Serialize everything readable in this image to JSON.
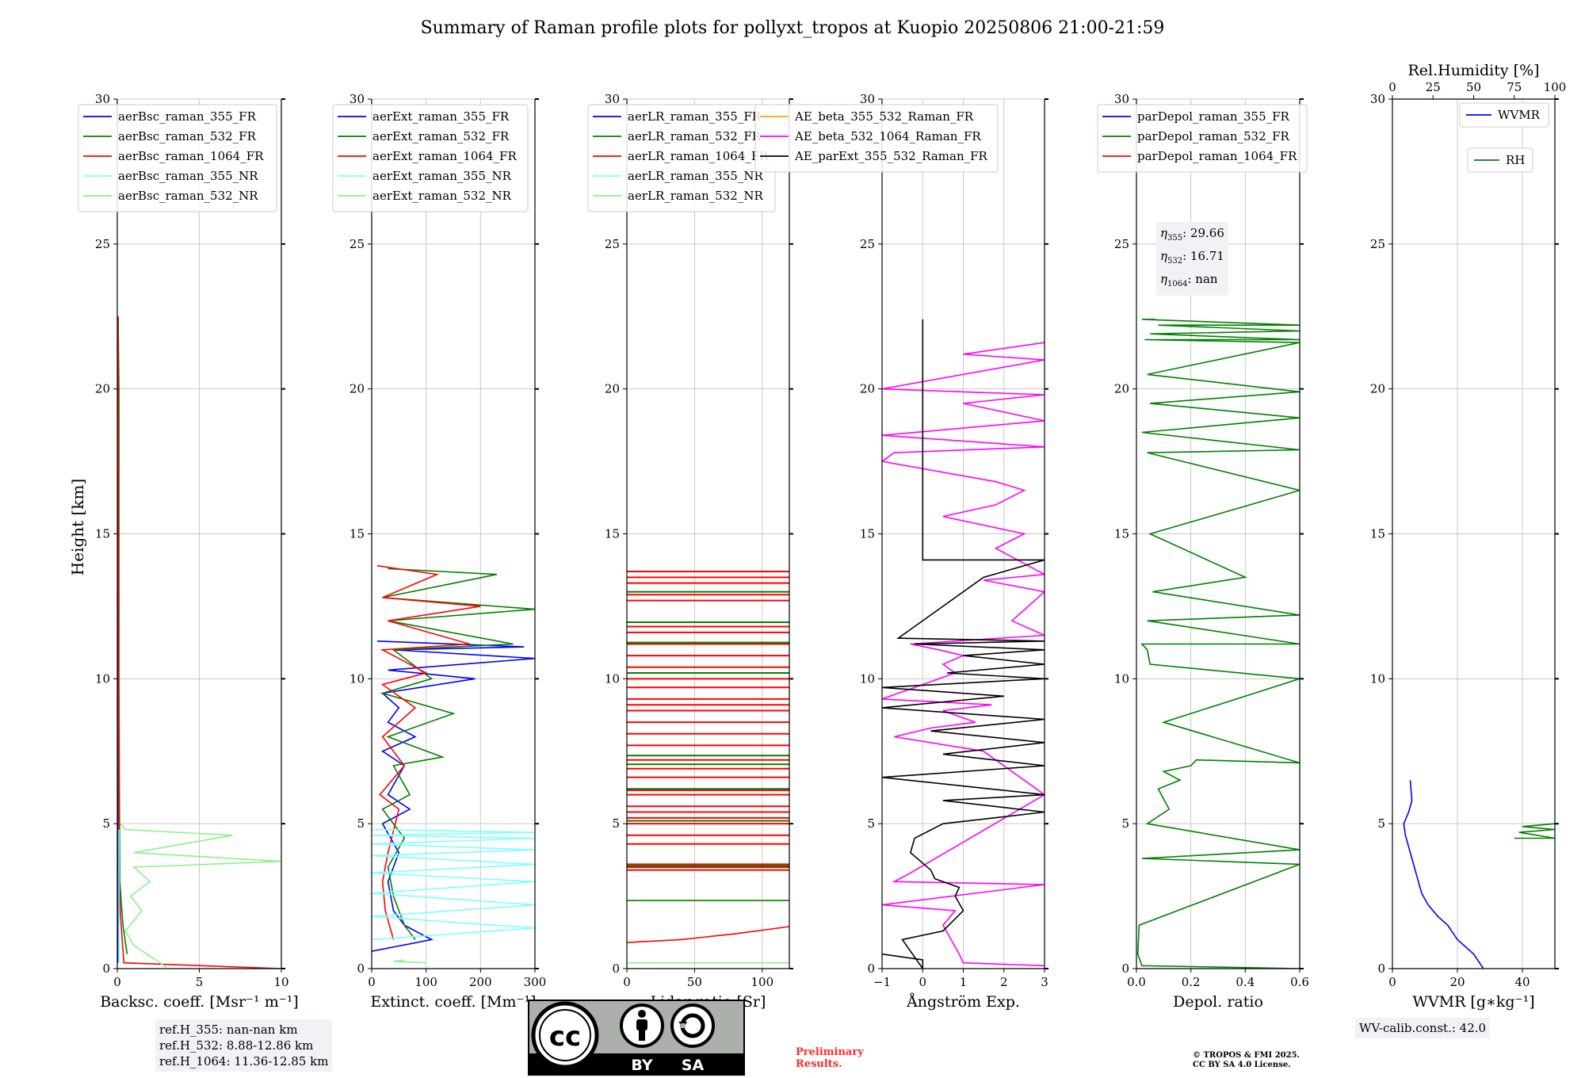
{
  "title": "Summary of Raman profile plots for pollyxt_tropos at Kuopio 20250806 21:00-21:59",
  "colors": {
    "blue": "#0000ff",
    "green": "#008000",
    "red": "#ff0000",
    "cyan": "#7fffff",
    "lightgreen": "#90ee90",
    "orange": "#ffa500",
    "magenta": "#ff00ff",
    "black": "#000000",
    "grid": "#c8c8c8",
    "infobox_bg": "#f0f2f6",
    "preliminary": "#ff2b2b"
  },
  "ylabel": "Height [km]",
  "ref_heights": [
    "ref.H_355: nan-nan km",
    "ref.H_532: 8.88-12.86 km",
    "ref.H_1064: 11.36-12.85 km"
  ],
  "eta": {
    "e355": "29.66",
    "e532": "16.71",
    "e1064": "nan"
  },
  "wv_calib": "WV-calib.const.: 42.0",
  "preliminary": [
    "Preliminary",
    "Results."
  ],
  "copyright": [
    "© TROPOS & FMI 2025.",
    "CC BY SA 4.0 License."
  ],
  "license_badge": {
    "icon_names": [
      "cc-icon",
      "by-person-icon",
      "sa-icon"
    ],
    "labels": [
      "BY",
      "SA"
    ]
  },
  "chart_data": [
    {
      "type": "line",
      "xlabel": "Backsc. coeff. [Msr⁻¹ m⁻¹]",
      "xlim": [
        0,
        10
      ],
      "ylim": [
        0,
        30
      ],
      "xticks": [
        "0",
        "5",
        "10"
      ],
      "yticks": [
        "0",
        "5",
        "10",
        "15",
        "20",
        "25",
        "30"
      ],
      "grid": true,
      "legend": "top",
      "series": [
        {
          "name": "aerBsc_raman_355_FR",
          "color": "blue",
          "x": [
            0.05,
            0.05,
            0.05
          ],
          "y": [
            0.2,
            10,
            22.5
          ]
        },
        {
          "name": "aerBsc_raman_532_FR",
          "color": "green",
          "x": [
            0.6,
            0.35,
            0.15,
            0.1,
            0.1,
            0.05
          ],
          "y": [
            0.5,
            1.5,
            3,
            10,
            20,
            22.5
          ]
        },
        {
          "name": "aerBsc_raman_1064_FR",
          "color": "red",
          "x": [
            10,
            0.4,
            0.3,
            0.2,
            0.1,
            0.08,
            0.05
          ],
          "y": [
            0,
            0.2,
            1.0,
            1.8,
            3,
            10,
            22.5
          ]
        },
        {
          "name": "aerBsc_raman_355_NR",
          "color": "cyan",
          "x": [
            0.1,
            0.1
          ],
          "y": [
            0.2,
            4.8
          ]
        },
        {
          "name": "aerBsc_raman_532_NR",
          "color": "lightgreen",
          "x": [
            3,
            1,
            0.5,
            1.5,
            0.8,
            2,
            1,
            10,
            1,
            7,
            0.5,
            0.2
          ],
          "y": [
            0.05,
            0.8,
            1.3,
            2.0,
            2.5,
            3.0,
            3.5,
            3.7,
            4.0,
            4.6,
            4.8,
            5.0
          ]
        }
      ]
    },
    {
      "type": "line",
      "xlabel": "Extinct. coeff. [Mm⁻¹]",
      "xlim": [
        0,
        300
      ],
      "ylim": [
        0,
        30
      ],
      "xticks": [
        "0",
        "100",
        "200",
        "300"
      ],
      "yticks": [
        "0",
        "5",
        "10",
        "15",
        "20",
        "25",
        "30"
      ],
      "grid": true,
      "legend": "top",
      "series": [
        {
          "name": "aerExt_raman_355_FR",
          "color": "blue",
          "x": [
            0,
            110,
            60,
            40,
            30,
            50,
            20,
            70,
            30,
            60,
            20,
            80,
            30,
            50,
            20,
            190,
            30,
            300,
            40,
            280,
            10
          ],
          "y": [
            0.6,
            1.0,
            1.5,
            2.0,
            3.0,
            4.0,
            5.0,
            5.5,
            6.0,
            7.0,
            7.5,
            8.0,
            8.5,
            9.0,
            9.5,
            10.0,
            10.3,
            10.7,
            11.0,
            11.1,
            11.3
          ]
        },
        {
          "name": "aerExt_raman_532_FR",
          "color": "green",
          "x": [
            80,
            60,
            40,
            30,
            60,
            20,
            70,
            40,
            130,
            30,
            150,
            20,
            110,
            40,
            260,
            30,
            300,
            20,
            230,
            30
          ],
          "y": [
            1.0,
            1.5,
            2.5,
            3.5,
            4.5,
            5.5,
            6.0,
            7.0,
            7.3,
            8.0,
            8.8,
            9.5,
            10.0,
            11.0,
            11.2,
            12.0,
            12.4,
            12.8,
            13.6,
            13.8
          ]
        },
        {
          "name": "aerExt_raman_1064_FR",
          "color": "red",
          "x": [
            40,
            25,
            20,
            30,
            50,
            15,
            60,
            20,
            80,
            20,
            100,
            20,
            180,
            30,
            200,
            20,
            120,
            10
          ],
          "y": [
            1.0,
            2.0,
            3.0,
            4.0,
            5.5,
            6.0,
            7.0,
            8.0,
            9.0,
            9.8,
            10.2,
            11.0,
            11.2,
            12.0,
            12.5,
            12.8,
            13.6,
            13.9
          ]
        },
        {
          "name": "aerExt_raman_355_NR",
          "color": "cyan",
          "x": [
            0,
            300,
            0,
            300,
            0,
            300,
            0,
            300,
            0,
            300,
            0,
            300,
            0,
            300,
            0
          ],
          "y": [
            1.0,
            1.4,
            1.8,
            2.2,
            2.6,
            3.0,
            3.3,
            3.6,
            3.9,
            4.1,
            4.3,
            4.5,
            4.6,
            4.7,
            4.8
          ]
        },
        {
          "name": "aerExt_raman_532_NR",
          "color": "lightgreen",
          "x": [
            100,
            40,
            60
          ],
          "y": [
            0.2,
            0.25,
            0.3
          ]
        }
      ]
    },
    {
      "type": "line",
      "xlabel": "Lidar ratio [Sr]",
      "xlim": [
        0,
        120
      ],
      "ylim": [
        0,
        30
      ],
      "xticks": [
        "0",
        "50",
        "100"
      ],
      "yticks": [
        "0",
        "5",
        "10",
        "15",
        "20",
        "25",
        "30"
      ],
      "grid": true,
      "legend": "top",
      "series": [
        {
          "name": "aerLR_raman_355_FR",
          "color": "blue",
          "x": [],
          "y": []
        },
        {
          "name": "aerLR_raman_532_FR",
          "color": "green",
          "x": [
            0,
            120
          ],
          "y": [
            2.35,
            2.35
          ]
        },
        {
          "name": "aerLR_raman_1064_FR",
          "color": "red",
          "x": [
            0,
            40,
            80,
            120
          ],
          "y": [
            0.9,
            1.0,
            1.2,
            1.45
          ]
        },
        {
          "name": "aerLR_raman_355_NR",
          "color": "cyan",
          "x": [],
          "y": []
        },
        {
          "name": "aerLR_raman_532_NR",
          "color": "lightgreen",
          "x": [
            0,
            120
          ],
          "y": [
            0.2,
            0.2
          ]
        }
      ],
      "horizontal_lines": {
        "red": [
          3.4,
          3.5,
          3.6,
          4.3,
          4.6,
          5.0,
          5.2,
          5.4,
          5.6,
          6.0,
          6.15,
          6.6,
          6.9,
          7.2,
          7.7,
          8.1,
          8.5,
          8.9,
          9.1,
          9.3,
          9.7,
          10.0,
          10.4,
          10.8,
          11.2,
          11.6,
          11.8,
          12.7,
          12.9,
          13.3,
          13.5,
          13.7
        ],
        "green": [
          3.55,
          5.1,
          6.2,
          7.05,
          7.35,
          10.2,
          11.25,
          11.95,
          13.0
        ]
      }
    },
    {
      "type": "line",
      "xlabel": "Ångström Exp.",
      "xlim": [
        -1,
        3
      ],
      "ylim": [
        0,
        30
      ],
      "xticks": [
        "−1",
        "0",
        "1",
        "2",
        "3"
      ],
      "yticks": [
        "0",
        "5",
        "10",
        "15",
        "20",
        "25",
        "30"
      ],
      "grid": true,
      "legend": "top",
      "series": [
        {
          "name": "AE_beta_355_532_Raman_FR",
          "color": "orange",
          "x": [],
          "y": []
        },
        {
          "name": "AE_beta_532_1064_Raman_FR",
          "color": "magenta",
          "x": [
            3,
            1,
            0.9,
            0.7,
            0.5,
            0.8,
            -1,
            3,
            -0.7,
            -0.3,
            3,
            1.5,
            -0.7,
            0.2,
            1.3,
            0.5,
            1.7,
            -1,
            0.8,
            0.5,
            1.0,
            0.4,
            -0.3,
            3,
            2.2,
            3,
            1.5,
            3,
            1.8,
            2.5,
            0.5,
            1.8,
            2.5,
            1.8,
            -1,
            -0.7,
            3,
            -1,
            3,
            1.0,
            3,
            -1,
            3,
            1.0,
            3
          ],
          "y": [
            0.1,
            0.2,
            0.5,
            1.0,
            1.5,
            2.0,
            2.2,
            2.9,
            3.0,
            3.3,
            6.0,
            7.5,
            8.0,
            8.3,
            8.5,
            8.9,
            9.1,
            9.3,
            10.2,
            10.5,
            10.8,
            11.0,
            11.2,
            11.5,
            12.0,
            13.0,
            13.4,
            13.6,
            14.5,
            15.0,
            15.6,
            16.0,
            16.5,
            16.8,
            17.5,
            17.8,
            18.0,
            18.4,
            18.9,
            19.5,
            19.8,
            20.0,
            21.0,
            21.2,
            21.6
          ]
        },
        {
          "name": "AE_parExt_355_532_Raman_FR",
          "color": "black",
          "x": [
            -1,
            0,
            0,
            -0.5,
            0.5,
            1.0,
            0.8,
            0.9,
            0.3,
            0.2,
            -0.3,
            -0.2,
            0.5,
            3,
            0.5,
            3,
            -1,
            3,
            0.5,
            3,
            0.2,
            3,
            -1,
            2,
            -1,
            3,
            0.6,
            3,
            1.0,
            3,
            -0.2,
            3,
            -0.6,
            1.5,
            3,
            0,
            0
          ],
          "y": [
            0.5,
            0.3,
            0,
            1.0,
            1.3,
            2.0,
            2.5,
            2.8,
            3.1,
            3.4,
            4.0,
            4.5,
            5.0,
            5.4,
            5.8,
            6.0,
            6.6,
            7.0,
            7.4,
            7.8,
            8.2,
            8.6,
            9.0,
            9.4,
            9.7,
            10.0,
            10.2,
            10.5,
            10.8,
            11.0,
            11.2,
            11.3,
            11.4,
            13.5,
            14.1,
            14.1,
            22.4
          ]
        }
      ]
    },
    {
      "type": "line",
      "xlabel": "Depol. ratio",
      "xlim": [
        0,
        0.6
      ],
      "ylim": [
        0,
        30
      ],
      "xticks": [
        "0.0",
        "0.2",
        "0.4",
        "0.6"
      ],
      "yticks": [
        "0",
        "5",
        "10",
        "15",
        "20",
        "25",
        "30"
      ],
      "grid": true,
      "legend": "top",
      "series": [
        {
          "name": "parDepol_raman_355_FR",
          "color": "blue",
          "x": [],
          "y": []
        },
        {
          "name": "parDepol_raman_532_FR",
          "color": "green",
          "x": [
            0.6,
            0.02,
            0.005,
            0.01,
            0.6,
            0.02,
            0.6,
            0.04,
            0.12,
            0.08,
            0.16,
            0.1,
            0.2,
            0.22,
            0.6,
            0.1,
            0.6,
            0.05,
            0.04,
            0.02,
            0.6,
            0.04,
            0.6,
            0.06,
            0.4,
            0.05,
            0.6,
            0.04,
            0.6,
            0.02,
            0.6,
            0.05,
            0.6,
            0.04,
            0.6,
            0.03,
            0.6,
            0.05,
            0.6,
            0.08,
            0.6,
            0.02,
            0.07
          ],
          "y": [
            0,
            0.1,
            0.5,
            1.5,
            3.6,
            3.8,
            4.1,
            5.0,
            5.5,
            6.2,
            6.5,
            6.8,
            7.0,
            7.2,
            7.1,
            8.5,
            10.0,
            10.5,
            11.0,
            11.2,
            11.2,
            12.0,
            12.2,
            13.0,
            13.5,
            15.0,
            16.5,
            17.8,
            17.9,
            18.5,
            19.0,
            19.5,
            19.9,
            20.5,
            21.6,
            21.7,
            21.7,
            21.9,
            22.0,
            22.2,
            22.2,
            22.4,
            22.4
          ]
        },
        {
          "name": "parDepol_raman_1064_FR",
          "color": "red",
          "x": [],
          "y": []
        }
      ]
    },
    {
      "type": "line",
      "xlabel": "WVMR [g∗kg⁻¹]",
      "x2label": "Rel.Humidity [%]",
      "xlim": [
        0,
        50
      ],
      "x2lim": [
        0,
        100
      ],
      "ylim": [
        0,
        30
      ],
      "xticks": [
        "0",
        "20",
        "40"
      ],
      "x2ticks": [
        "0",
        "25",
        "50",
        "75",
        "100"
      ],
      "yticks": [
        "0",
        "5",
        "10",
        "15",
        "20",
        "25",
        "30"
      ],
      "grid": true,
      "legend": "top-right",
      "series": [
        {
          "name": "WVMR",
          "color": "blue",
          "x": [
            28,
            25,
            20,
            17,
            14,
            11,
            9,
            8,
            7,
            6,
            5,
            4,
            3.5,
            5,
            6,
            5.5
          ],
          "y": [
            0,
            0.5,
            1.0,
            1.5,
            1.8,
            2.2,
            2.6,
            3.0,
            3.4,
            3.8,
            4.2,
            4.6,
            5.0,
            5.4,
            5.8,
            6.5
          ]
        },
        {
          "name": "RH",
          "color": "green",
          "axis": "x2",
          "x": [
            75,
            100,
            78,
            100,
            80,
            100
          ],
          "y": [
            4.5,
            4.5,
            4.7,
            4.8,
            4.9,
            5.0
          ]
        }
      ]
    }
  ]
}
